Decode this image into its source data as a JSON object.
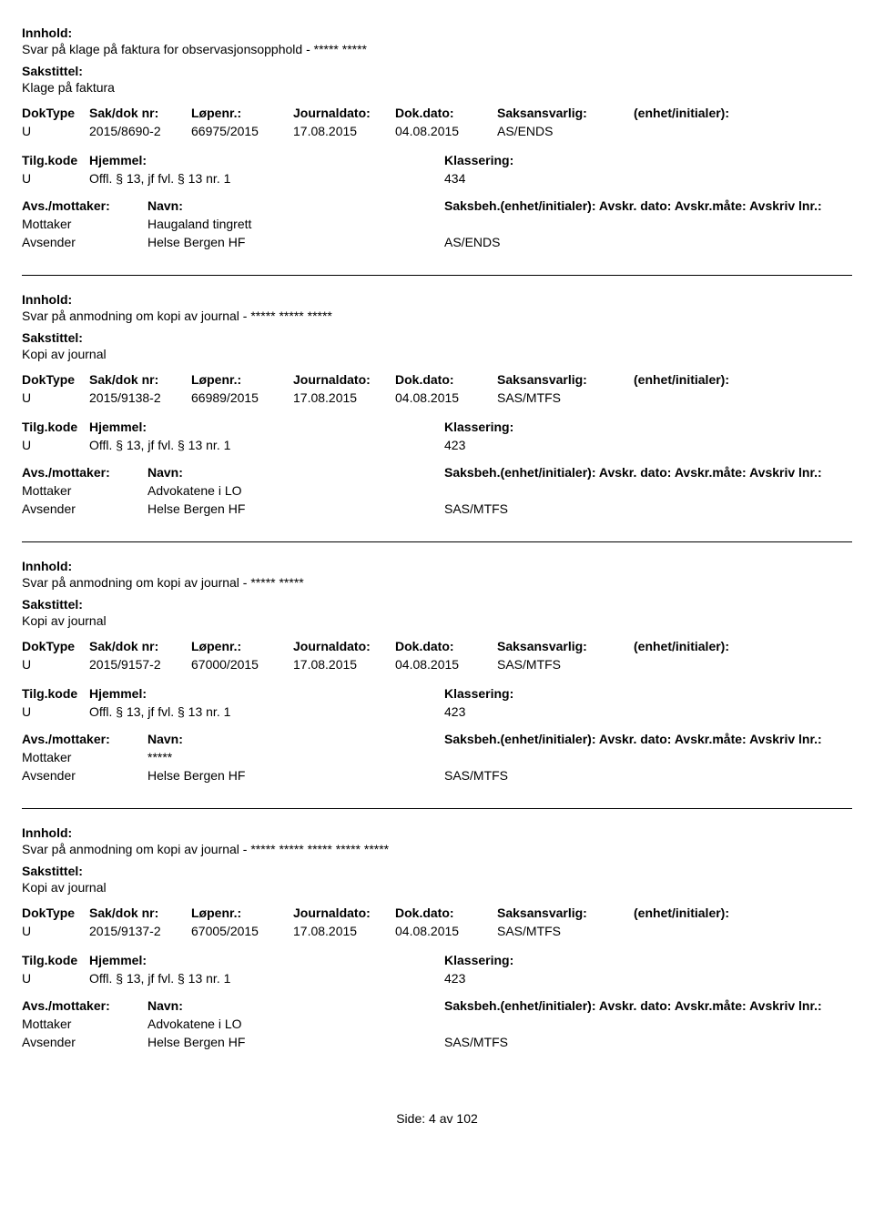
{
  "labels": {
    "innhold": "Innhold:",
    "sakstittel": "Sakstittel:",
    "doktype": "DokType",
    "sakdoknr": "Sak/dok nr:",
    "lopenr": "Løpenr.:",
    "journaldato": "Journaldato:",
    "dokdato": "Dok.dato:",
    "saksansvarlig": "Saksansvarlig:",
    "enhet_init": "(enhet/initialer):",
    "tilgkode": "Tilg.kode",
    "hjemmel": "Hjemmel:",
    "klassering": "Klassering:",
    "avs_mottaker": "Avs./mottaker:",
    "navn": "Navn:",
    "saksbeh_combo": "Saksbeh.(enhet/initialer): Avskr. dato:  Avskr.måte:  Avskriv lnr.:",
    "mottaker": "Mottaker",
    "avsender": "Avsender"
  },
  "footer": {
    "side_label": "Side:",
    "page": "4",
    "av": "av",
    "total": "102"
  },
  "records": [
    {
      "innhold": "Svar på klage på faktura for observasjonsopphold - ***** *****",
      "sakstittel": "Klage på faktura",
      "doktype": "U",
      "sakdoknr": "2015/8690-2",
      "lopenr": "66975/2015",
      "journaldato": "17.08.2015",
      "dokdato": "04.08.2015",
      "saksansvarlig": "AS/ENDS",
      "tilgkode": "U",
      "hjemmel": "Offl. § 13, jf fvl. § 13 nr. 1",
      "klassering": "434",
      "mottaker_navn": "Haugaland tingrett",
      "avsender_navn": "Helse Bergen HF",
      "avsender_enhet": "AS/ENDS"
    },
    {
      "innhold": "Svar på anmodning om kopi av journal - ***** ***** *****",
      "sakstittel": "Kopi av journal",
      "doktype": "U",
      "sakdoknr": "2015/9138-2",
      "lopenr": "66989/2015",
      "journaldato": "17.08.2015",
      "dokdato": "04.08.2015",
      "saksansvarlig": "SAS/MTFS",
      "tilgkode": "U",
      "hjemmel": "Offl. § 13, jf fvl. § 13 nr. 1",
      "klassering": "423",
      "mottaker_navn": "Advokatene i LO",
      "avsender_navn": "Helse Bergen HF",
      "avsender_enhet": "SAS/MTFS"
    },
    {
      "innhold": "Svar på anmodning om kopi av journal - ***** *****",
      "sakstittel": "Kopi av journal",
      "doktype": "U",
      "sakdoknr": "2015/9157-2",
      "lopenr": "67000/2015",
      "journaldato": "17.08.2015",
      "dokdato": "04.08.2015",
      "saksansvarlig": "SAS/MTFS",
      "tilgkode": "U",
      "hjemmel": "Offl. § 13, jf fvl. § 13 nr. 1",
      "klassering": "423",
      "mottaker_navn": "*****",
      "avsender_navn": "Helse Bergen HF",
      "avsender_enhet": "SAS/MTFS"
    },
    {
      "innhold": "Svar på anmodning om kopi av journal - ***** ***** ***** ***** *****",
      "sakstittel": "Kopi av journal",
      "doktype": "U",
      "sakdoknr": "2015/9137-2",
      "lopenr": "67005/2015",
      "journaldato": "17.08.2015",
      "dokdato": "04.08.2015",
      "saksansvarlig": "SAS/MTFS",
      "tilgkode": "U",
      "hjemmel": "Offl. § 13, jf fvl. § 13 nr. 1",
      "klassering": "423",
      "mottaker_navn": "Advokatene i LO",
      "avsender_navn": "Helse Bergen HF",
      "avsender_enhet": "SAS/MTFS"
    }
  ]
}
